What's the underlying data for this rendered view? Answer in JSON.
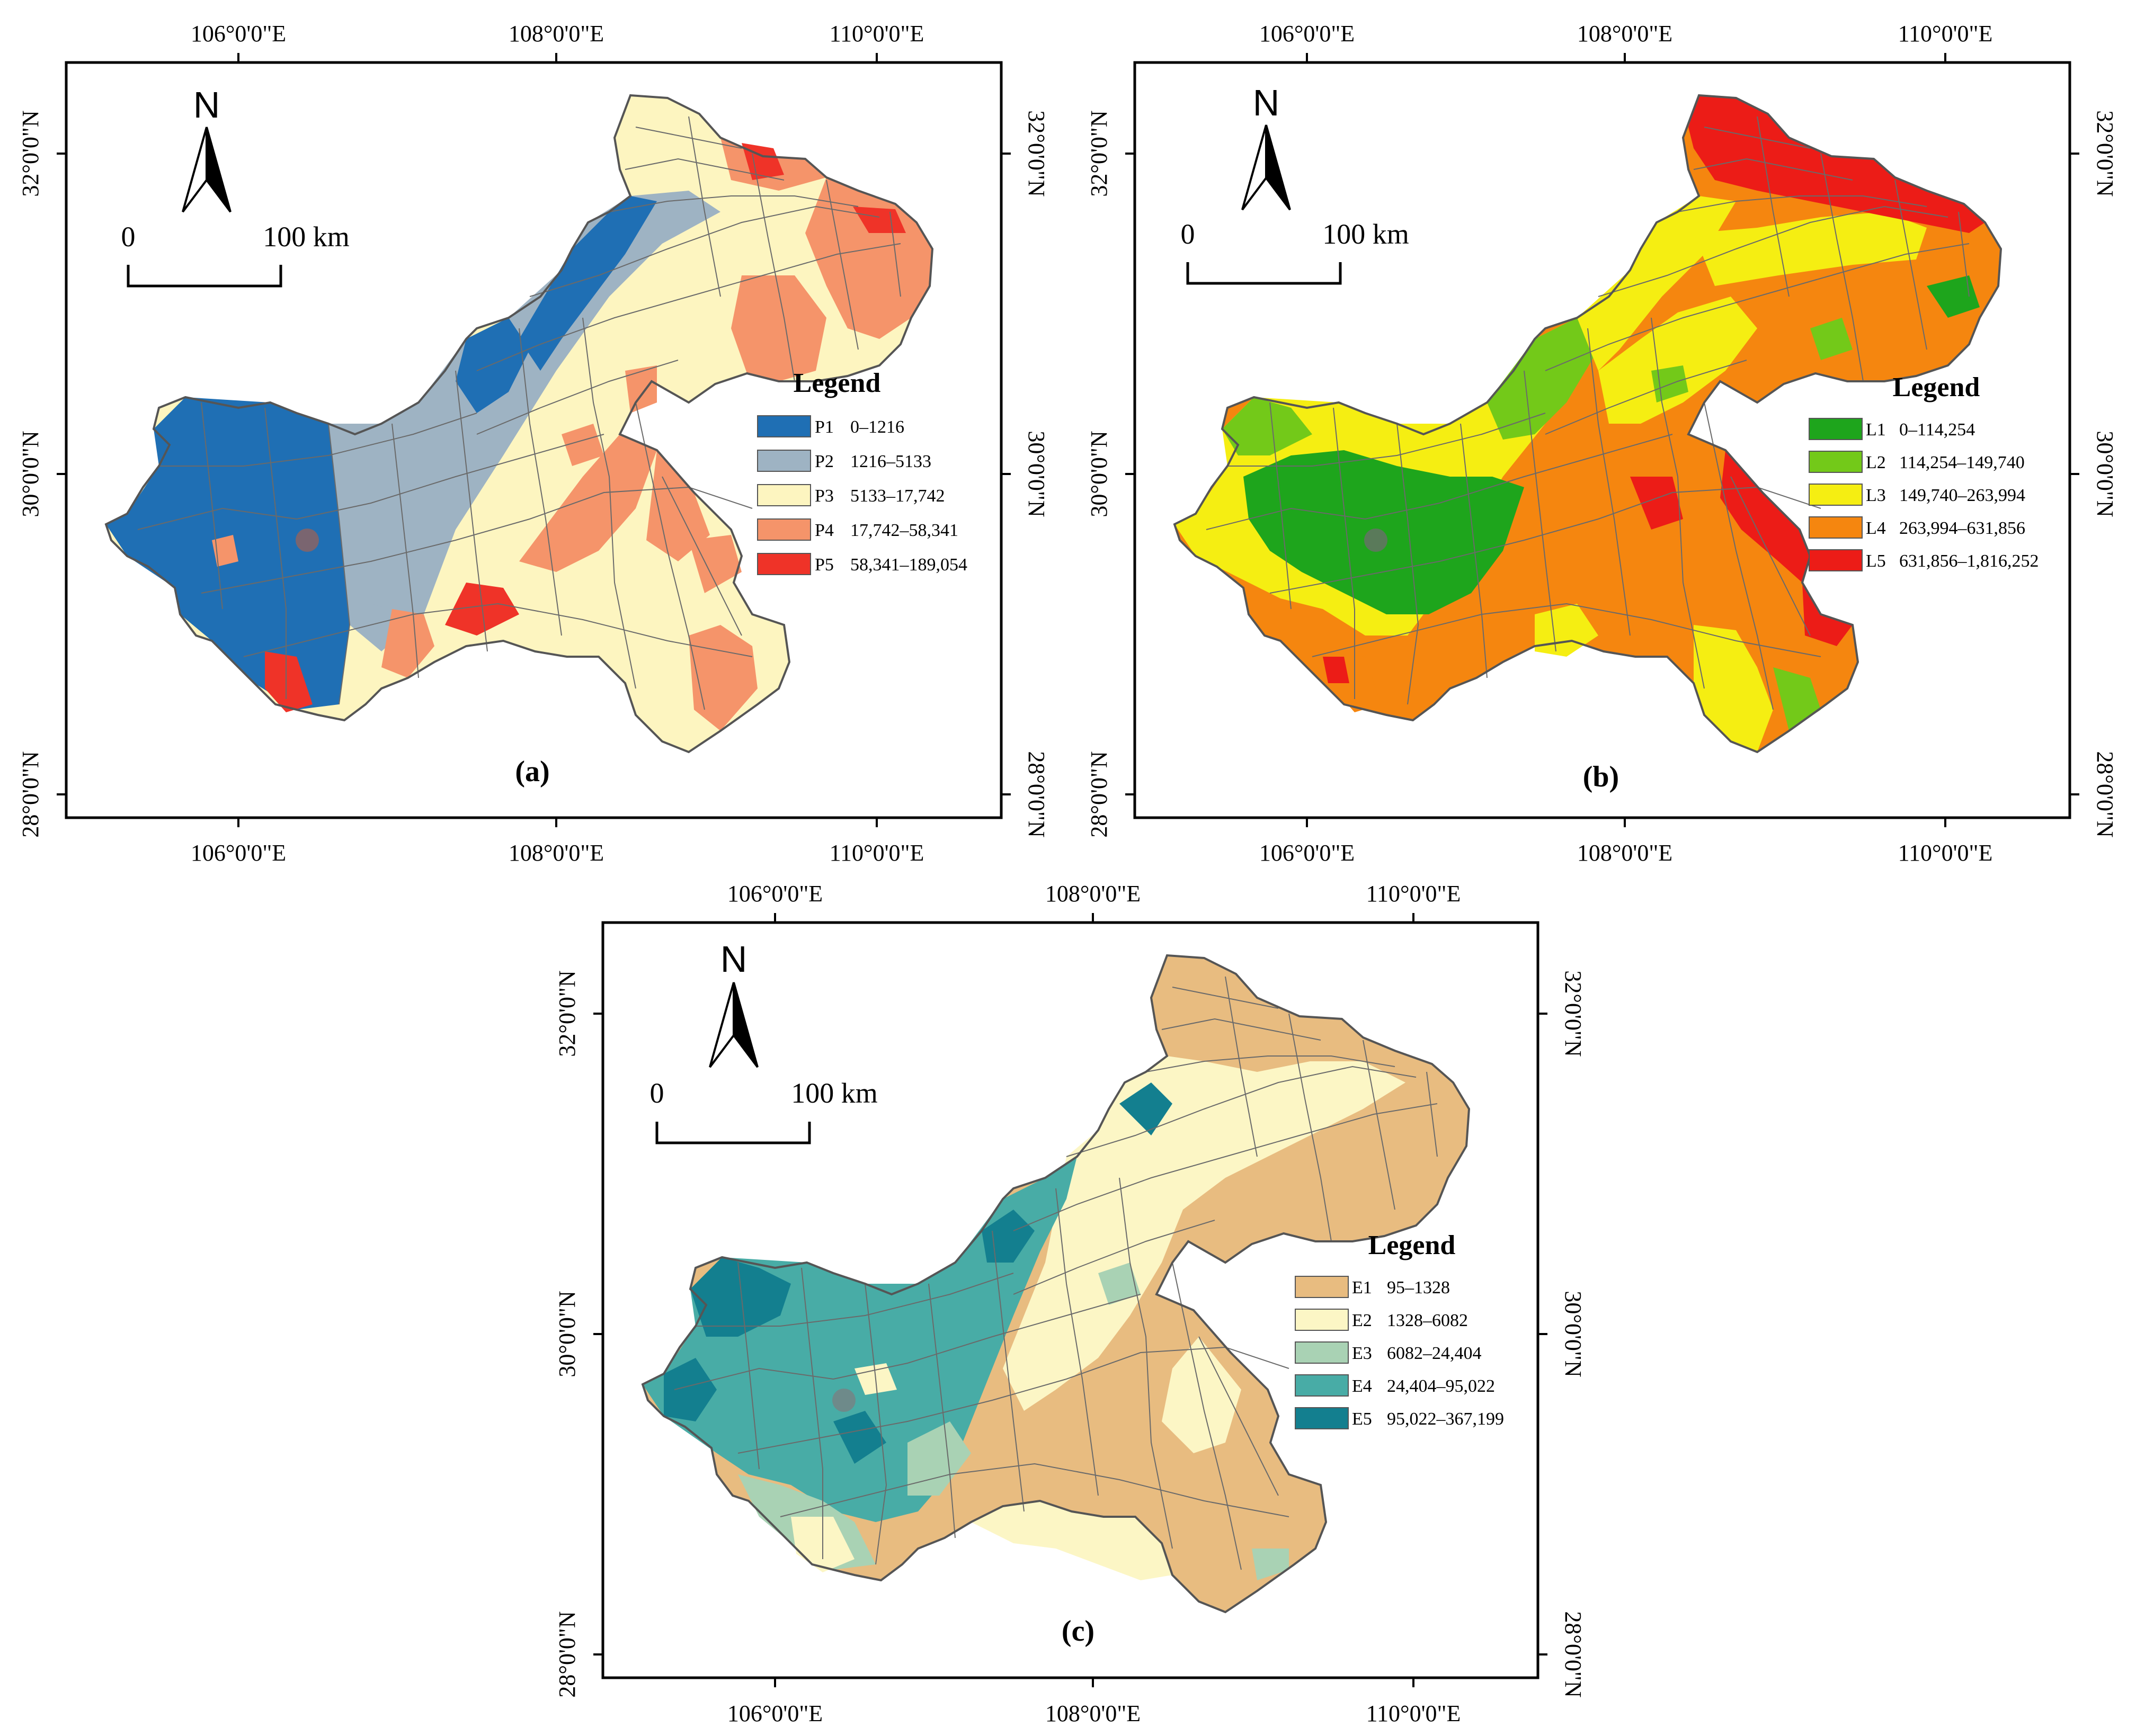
{
  "panels": [
    {
      "id": "a",
      "label": "(a)",
      "legend_title": "Legend",
      "classes": [
        {
          "code": "P1",
          "range": "0–1216",
          "color": "#1f6fb4"
        },
        {
          "code": "P2",
          "range": "1216–5133",
          "color": "#9eb3c3"
        },
        {
          "code": "P3",
          "range": "5133–17,742",
          "color": "#fdf5c0"
        },
        {
          "code": "P4",
          "range": "17,742–58,341",
          "color": "#f5946a"
        },
        {
          "code": "P5",
          "range": "58,341–189,054",
          "color": "#ef3328"
        }
      ]
    },
    {
      "id": "b",
      "label": "(b)",
      "legend_title": "Legend",
      "classes": [
        {
          "code": "L1",
          "range": "0–114,254",
          "color": "#1ea51c"
        },
        {
          "code": "L2",
          "range": "114,254–149,740",
          "color": "#73c919"
        },
        {
          "code": "L3",
          "range": "149,740–263,994",
          "color": "#f5ee12"
        },
        {
          "code": "L4",
          "range": "263,994–631,856",
          "color": "#f5860f"
        },
        {
          "code": "L5",
          "range": "631,856–1,816,252",
          "color": "#ec1c17"
        }
      ]
    },
    {
      "id": "c",
      "label": "(c)",
      "legend_title": "Legend",
      "classes": [
        {
          "code": "E1",
          "range": "95–1328",
          "color": "#e8bc80"
        },
        {
          "code": "E2",
          "range": "1328–6082",
          "color": "#fcf6c5"
        },
        {
          "code": "E3",
          "range": "6082–24,404",
          "color": "#a9d2b4"
        },
        {
          "code": "E4",
          "range": "24,404–95,022",
          "color": "#48aca6"
        },
        {
          "code": "E5",
          "range": "95,022–367,199",
          "color": "#137f8f"
        }
      ]
    }
  ],
  "lon_labels": [
    "106°0'0\"E",
    "108°0'0\"E",
    "110°0'0\"E"
  ],
  "lat_labels": [
    "32°0'0\"N",
    "30°0'0\"N",
    "28°0'0\"N"
  ],
  "north_label": "N",
  "scale": {
    "start": "0",
    "end": "100 km"
  }
}
